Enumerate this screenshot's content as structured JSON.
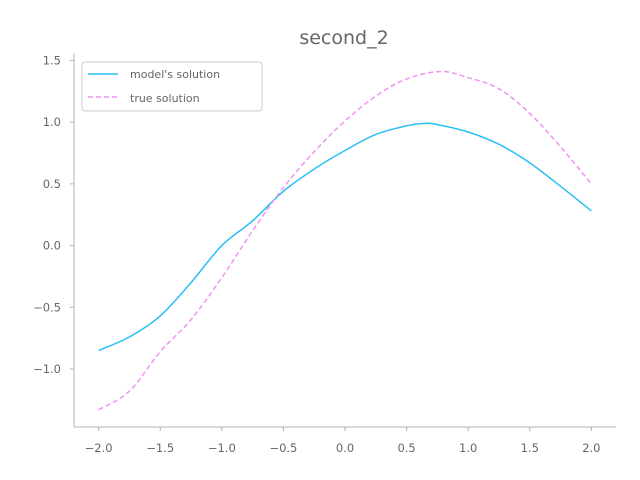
{
  "chart_data": {
    "type": "line",
    "title": "second_2",
    "xlabel": "",
    "ylabel": "",
    "xlim": [
      -2.2,
      2.2
    ],
    "ylim": [
      -1.47,
      1.56
    ],
    "xticks": [
      -2.0,
      -1.5,
      -1.0,
      -0.5,
      0.0,
      0.5,
      1.0,
      1.5,
      2.0
    ],
    "xtick_labels": [
      "−2.0",
      "−1.5",
      "−1.0",
      "−0.5",
      "0.0",
      "0.5",
      "1.0",
      "1.5",
      "2.0"
    ],
    "yticks": [
      -1.0,
      -0.5,
      0.0,
      0.5,
      1.0,
      1.5
    ],
    "ytick_labels": [
      "−1.0",
      "−0.5",
      "0.0",
      "0.5",
      "1.0",
      "1.5"
    ],
    "grid": false,
    "legend_position": "top-left",
    "series": [
      {
        "name": "model's solution",
        "color": "#29bff5",
        "style": "solid",
        "x": [
          -2.0,
          -1.75,
          -1.5,
          -1.25,
          -1.0,
          -0.75,
          -0.5,
          -0.25,
          0.0,
          0.25,
          0.5,
          0.65,
          0.75,
          1.0,
          1.25,
          1.5,
          1.75,
          2.0
        ],
        "y": [
          -0.85,
          -0.74,
          -0.57,
          -0.3,
          0.0,
          0.2,
          0.44,
          0.62,
          0.77,
          0.9,
          0.97,
          0.99,
          0.98,
          0.92,
          0.82,
          0.67,
          0.48,
          0.28
        ]
      },
      {
        "name": "true solution",
        "color": "#f191f1",
        "style": "dashed",
        "x": [
          -2.0,
          -1.75,
          -1.5,
          -1.25,
          -1.0,
          -0.75,
          -0.5,
          -0.25,
          0.0,
          0.25,
          0.5,
          0.78,
          1.0,
          1.25,
          1.5,
          1.75,
          2.0
        ],
        "y": [
          -1.33,
          -1.18,
          -0.86,
          -0.6,
          -0.26,
          0.12,
          0.47,
          0.76,
          1.01,
          1.21,
          1.35,
          1.41,
          1.36,
          1.27,
          1.07,
          0.8,
          0.5
        ]
      }
    ]
  }
}
